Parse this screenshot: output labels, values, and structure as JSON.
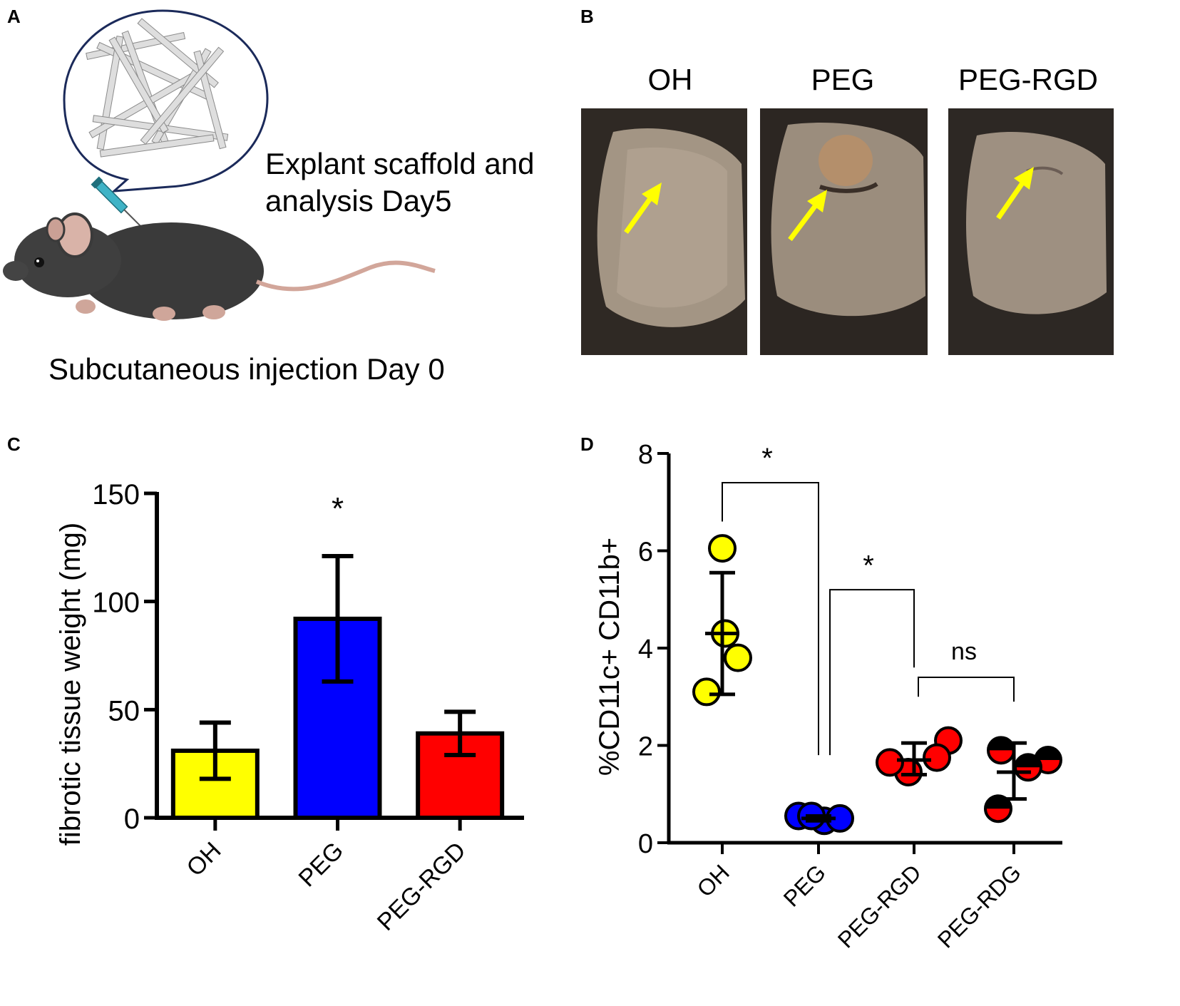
{
  "panels": {
    "a": {
      "letter": "A",
      "caption_explant_line1": "Explant scaffold and",
      "caption_explant_line2": "analysis Day5",
      "caption_injection": "Subcutaneous injection Day 0",
      "illustration": "mouse-with-syringe-and-fiber-scaffold",
      "colors": {
        "bubble_outline": "#1b2a5a",
        "fiber": "#d9d9d9",
        "mouse": "#3a3a3a",
        "syringe": "#3fb3c6"
      }
    },
    "b": {
      "letter": "B",
      "photos": [
        {
          "label": "OH"
        },
        {
          "label": "PEG"
        },
        {
          "label": "PEG-RGD"
        }
      ],
      "arrow_color": "#ffff00"
    },
    "c": {
      "letter": "C"
    },
    "d": {
      "letter": "D"
    }
  },
  "chart_data": [
    {
      "id": "C",
      "type": "bar",
      "title": "",
      "xlabel": "",
      "ylabel": "fibrotic tissue weight (mg)",
      "ylim": [
        0,
        150
      ],
      "yticks": [
        0,
        50,
        100,
        150
      ],
      "categories": [
        "OH",
        "PEG",
        "PEG-RGD"
      ],
      "values": [
        31,
        92,
        39
      ],
      "error": [
        13,
        29,
        10
      ],
      "colors": [
        "#ffff00",
        "#0000ff",
        "#ff0000"
      ],
      "annotations": [
        {
          "category": "PEG",
          "text": "*"
        }
      ]
    },
    {
      "id": "D",
      "type": "scatter",
      "title": "",
      "xlabel": "",
      "ylabel": "%CD11c+ CD11b+",
      "ylim": [
        0,
        8
      ],
      "yticks": [
        0,
        2,
        4,
        6,
        8
      ],
      "categories": [
        "OH",
        "PEG",
        "PEG-RGD",
        "PEG-RDG"
      ],
      "series": [
        {
          "name": "OH",
          "color": "#ffff00",
          "points": [
            6.05,
            4.3,
            3.8,
            3.1
          ],
          "mean": 4.3,
          "sd_low": 3.05,
          "sd_high": 5.55
        },
        {
          "name": "PEG",
          "color": "#0000ff",
          "points": [
            0.55,
            0.45,
            0.5,
            0.55
          ],
          "mean": 0.5,
          "sd_low": 0.45,
          "sd_high": 0.55
        },
        {
          "name": "PEG-RGD",
          "color": "#ff0000",
          "points": [
            2.1,
            1.75,
            1.45,
            1.65
          ],
          "mean": 1.7,
          "sd_low": 1.4,
          "sd_high": 2.05
        },
        {
          "name": "PEG-RDG",
          "color": "#ff0000",
          "half_filled": true,
          "points": [
            1.9,
            1.7,
            1.55,
            0.7
          ],
          "mean": 1.45,
          "sd_low": 0.9,
          "sd_high": 2.05
        }
      ],
      "comparisons": [
        {
          "from": "OH",
          "to": "PEG",
          "label": "*"
        },
        {
          "from": "PEG",
          "to": "PEG-RGD",
          "label": "*"
        },
        {
          "from": "PEG-RGD",
          "to": "PEG-RDG",
          "label": "ns"
        }
      ]
    }
  ]
}
